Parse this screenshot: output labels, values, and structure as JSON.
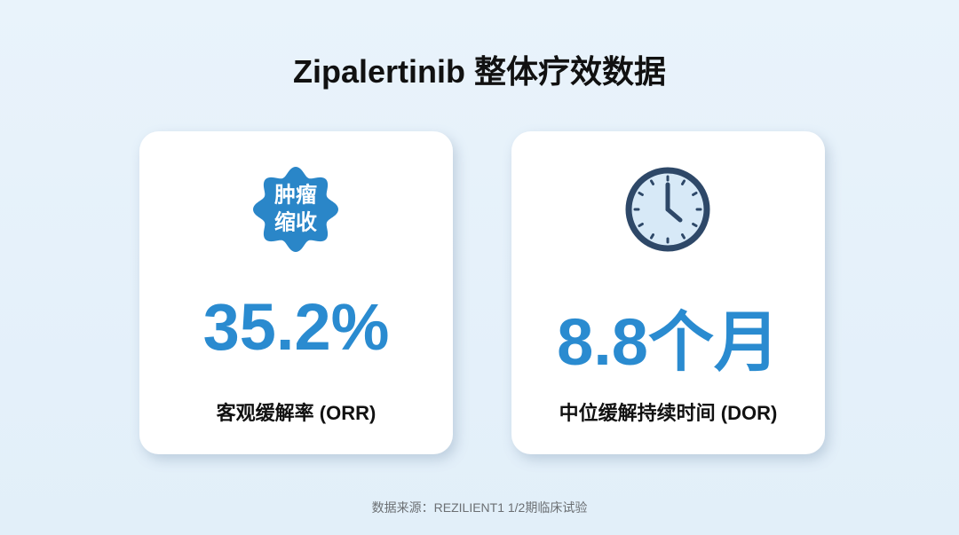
{
  "title": "Zipalertinib 整体疗效数据",
  "cards": [
    {
      "badge": [
        "肿瘤",
        "缩收"
      ],
      "value": "35.2%",
      "label": "客观缓解率 (ORR)"
    },
    {
      "value": "8.8个月",
      "label": "中位缓解持续时间 (DOR)"
    }
  ],
  "source": "数据来源：REZILIENT1 1/2期临床试验"
}
